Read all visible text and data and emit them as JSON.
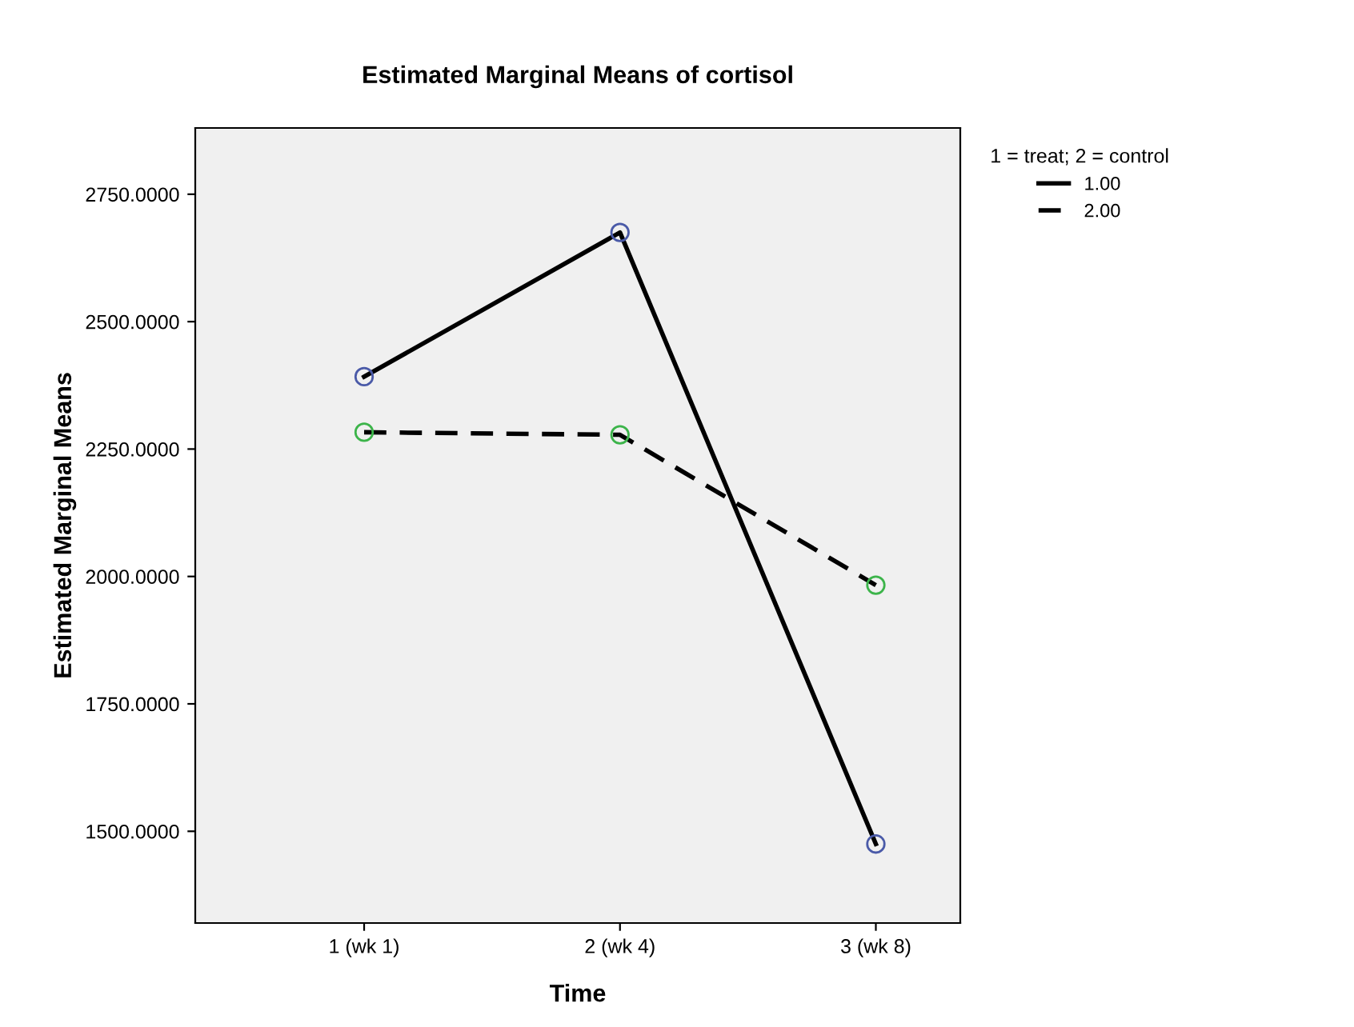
{
  "chart_data": {
    "type": "line",
    "title": "Estimated Marginal Means of cortisol",
    "xlabel": "Time",
    "ylabel": "Estimated Marginal Means",
    "legend_title": "1 = treat; 2 = control",
    "categories": [
      "1 (wk 1)",
      "2 (wk 4)",
      "3 (wk 8)"
    ],
    "series": [
      {
        "name": "1.00",
        "color": "#000000",
        "colors": [
          "#4a5aa8",
          "#4a5aa8",
          "#4a5aa8"
        ],
        "line_style": "solid",
        "values": [
          2392,
          2675,
          1475
        ]
      },
      {
        "name": "2.00",
        "color": "#000000",
        "colors": [
          "#3cb44a",
          "#3cb44a",
          "#3cb44a"
        ],
        "line_style": "dashed",
        "values": [
          2283,
          2278,
          1983
        ]
      }
    ],
    "ylim": [
      1320,
      2880
    ],
    "yticks": [
      {
        "value": 1500,
        "label": "1500.0000"
      },
      {
        "value": 1750,
        "label": "1750.0000"
      },
      {
        "value": 2000,
        "label": "2000.0000"
      },
      {
        "value": 2250,
        "label": "2250.0000"
      },
      {
        "value": 2500,
        "label": "2500.0000"
      },
      {
        "value": 2750,
        "label": "2750.0000"
      }
    ],
    "marker": "circle",
    "grid": false,
    "legend": "top right"
  }
}
